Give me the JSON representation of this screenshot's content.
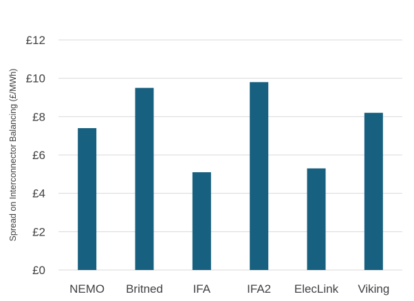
{
  "chart_data": {
    "type": "bar",
    "title": "",
    "xlabel": "",
    "ylabel": "Spread on Interconnector Balancing (£/MWh)",
    "categories": [
      "NEMO",
      "Britned",
      "IFA",
      "IFA2",
      "ElecLink",
      "Viking"
    ],
    "series": [
      {
        "values": [
          7.4,
          9.5,
          5.1,
          9.8,
          5.3,
          8.2
        ]
      }
    ],
    "ylim": [
      0,
      12
    ],
    "yticks": [
      0,
      2,
      4,
      6,
      8,
      10,
      12
    ],
    "ytick_labels": [
      "£0",
      "£2",
      "£4",
      "£6",
      "£8",
      "£10",
      "£12"
    ],
    "grid": true,
    "legend": "none",
    "colors": {
      "bar": "#17607f",
      "grid": "#d9d9d9",
      "text": "#404040"
    }
  }
}
